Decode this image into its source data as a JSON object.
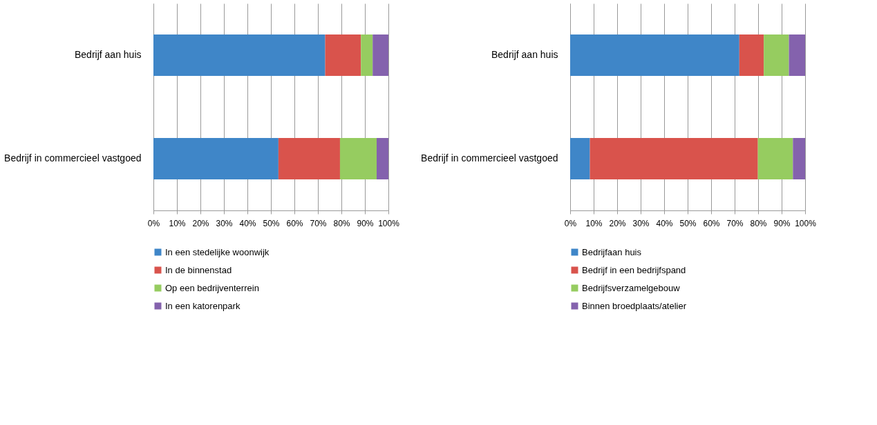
{
  "chart_data": [
    {
      "type": "bar",
      "orientation": "horizontal",
      "stacked": true,
      "categories": [
        "Bedrijf aan huis",
        "Bedrijf in commercieel vastgoed"
      ],
      "series": [
        {
          "name": "In een stedelijke woonwijk",
          "color": "#3f86c8",
          "values": [
            73.1,
            53.2
          ]
        },
        {
          "name": "In de binnenstad",
          "color": "#d9534c",
          "values": [
            15.2,
            26.2
          ]
        },
        {
          "name": "Op een bedrijventerrein",
          "color": "#96cc60",
          "values": [
            5.0,
            15.6
          ]
        },
        {
          "name": "In een katorenpark",
          "color": "#8462ad",
          "values": [
            6.7,
            5.0
          ]
        }
      ],
      "xlim": [
        0,
        100
      ],
      "xticks": [
        {
          "value": 0,
          "label": "0%"
        },
        {
          "value": 10,
          "label": "10%"
        },
        {
          "value": 20,
          "label": "20%"
        },
        {
          "value": 30,
          "label": "30%"
        },
        {
          "value": 40,
          "label": "40%"
        },
        {
          "value": 50,
          "label": "50%"
        },
        {
          "value": 60,
          "label": "60%"
        },
        {
          "value": 70,
          "label": "70%"
        },
        {
          "value": 80,
          "label": "80%"
        },
        {
          "value": 90,
          "label": "90%"
        },
        {
          "value": 100,
          "label": "100%"
        }
      ],
      "grid": "x",
      "legend": "bottom"
    },
    {
      "type": "bar",
      "orientation": "horizontal",
      "stacked": true,
      "categories": [
        "Bedrijf aan huis",
        "Bedrijf in commercieel vastgoed"
      ],
      "series": [
        {
          "name": "Bedrijfaan huis",
          "color": "#3f86c8",
          "values": [
            72.0,
            8.4
          ]
        },
        {
          "name": "Bedrijf in een bedrijfspand",
          "color": "#d9534c",
          "values": [
            10.4,
            71.5
          ]
        },
        {
          "name": "Bedrijfsverzamelgebouw",
          "color": "#96cc60",
          "values": [
            10.7,
            14.9
          ]
        },
        {
          "name": "Binnen broedplaats/atelier",
          "color": "#8462ad",
          "values": [
            6.9,
            5.2
          ]
        }
      ],
      "xlim": [
        0,
        100
      ],
      "xticks": [
        {
          "value": 0,
          "label": "0%"
        },
        {
          "value": 10,
          "label": "10%"
        },
        {
          "value": 20,
          "label": "20%"
        },
        {
          "value": 30,
          "label": "30%"
        },
        {
          "value": 40,
          "label": "40%"
        },
        {
          "value": 50,
          "label": "50%"
        },
        {
          "value": 60,
          "label": "60%"
        },
        {
          "value": 70,
          "label": "70%"
        },
        {
          "value": 80,
          "label": "80%"
        },
        {
          "value": 90,
          "label": "90%"
        },
        {
          "value": 100,
          "label": "100%"
        }
      ],
      "grid": "x",
      "legend": "bottom"
    }
  ]
}
